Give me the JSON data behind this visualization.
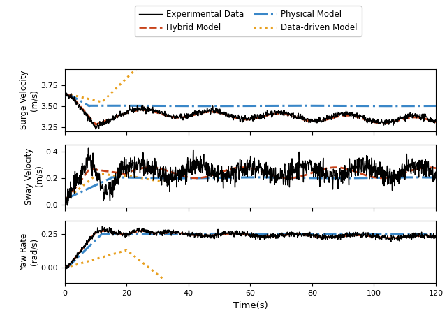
{
  "xlabel": "Time(s)",
  "ylabels": [
    "Surge Velocity\n(m/s)",
    "Sway Velocity\n(m/s)",
    "Yaw Rate\n(rad/s)"
  ],
  "xlim": [
    0,
    120
  ],
  "surge_ylim": [
    3.2,
    3.95
  ],
  "sway_ylim": [
    -0.02,
    0.45
  ],
  "yaw_ylim": [
    -0.12,
    0.35
  ],
  "surge_yticks": [
    3.25,
    3.5,
    3.75
  ],
  "sway_yticks": [
    0.0,
    0.2,
    0.4
  ],
  "yaw_yticks": [
    0.0,
    0.25
  ],
  "xticks": [
    0,
    20,
    40,
    60,
    80,
    100,
    120
  ],
  "colors": {
    "experimental": "#000000",
    "hybrid": "#C8431A",
    "physical": "#3A87C8",
    "datadriven": "#E8A020"
  },
  "legend_labels": [
    "Experimental Data",
    "Hybrid Model",
    "Physical Model",
    "Data-driven Model"
  ],
  "line_styles": {
    "experimental": "-",
    "hybrid": "--",
    "physical": "-.",
    "datadriven": ":"
  },
  "line_widths": {
    "experimental": 1.0,
    "hybrid": 2.0,
    "physical": 2.2,
    "datadriven": 2.2
  }
}
